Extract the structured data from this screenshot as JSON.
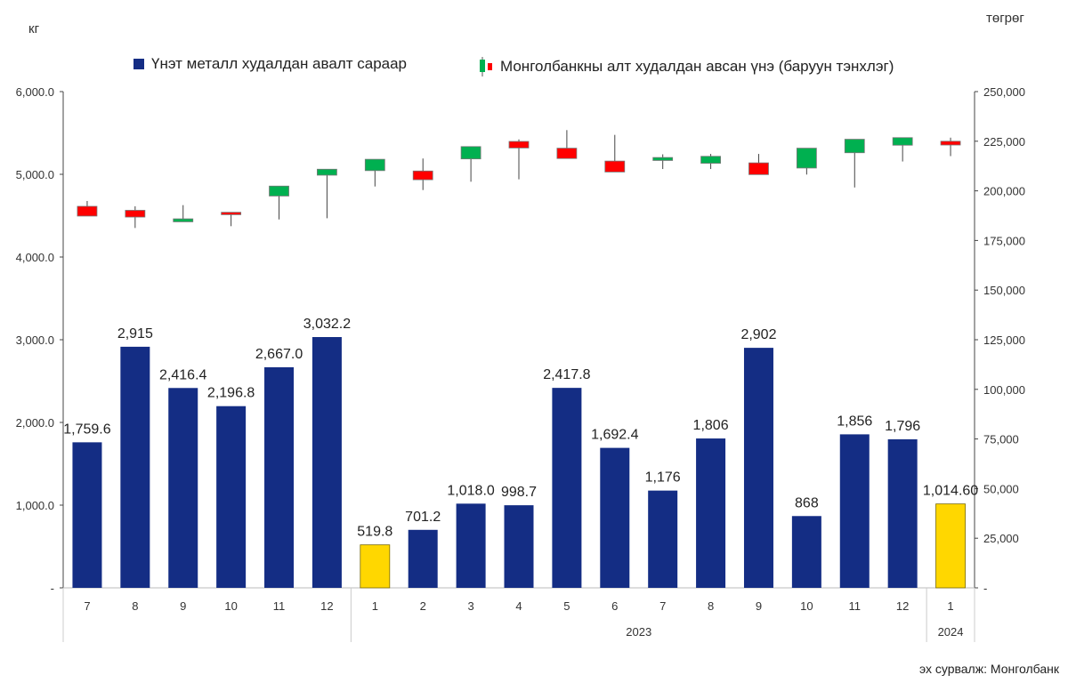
{
  "chart_data": {
    "type": "bar+candlestick",
    "left_unit": "кг",
    "right_unit": "төгрөг",
    "source": "эх сурвалж: Монголбанк",
    "legend": [
      {
        "label": "Үнэт металл худалдан авалт сараар",
        "type": "bar",
        "color": "#142D84"
      },
      {
        "label": "Монголбанкны алт худалдан авсан үнэ (баруун тэнхлэг)",
        "type": "candlestick",
        "up_color": "#00B050",
        "down_color": "#FF0000"
      }
    ],
    "categories": [
      "7",
      "8",
      "9",
      "10",
      "11",
      "12",
      "1",
      "2",
      "3",
      "4",
      "5",
      "6",
      "7",
      "8",
      "9",
      "10",
      "11",
      "12",
      "1"
    ],
    "year_groups": [
      {
        "label": "",
        "start": 0,
        "end": 5
      },
      {
        "label": "2023",
        "start": 6,
        "end": 17
      },
      {
        "label": "2024",
        "start": 18,
        "end": 18
      }
    ],
    "bars": {
      "values": [
        1759.6,
        2915,
        2416.4,
        2196.8,
        2667.0,
        3032.2,
        519.8,
        701.2,
        1018.0,
        998.7,
        2417.8,
        1692.4,
        1176,
        1806,
        2902,
        868,
        1856,
        1796,
        1014.6
      ],
      "labels": [
        "1,759.6",
        "2,915",
        "2,416.4",
        "2,196.8",
        "2,667.0",
        "3,032.2",
        "519.8",
        "701.2",
        "1,018.0",
        "998.7",
        "2,417.8",
        "1,692.4",
        "1,176",
        "1,806",
        "2,902",
        "868",
        "1,856",
        "1,796",
        "1,014.60"
      ],
      "highlight": [
        false,
        false,
        false,
        false,
        false,
        false,
        true,
        false,
        false,
        false,
        false,
        false,
        false,
        false,
        false,
        false,
        false,
        false,
        true
      ],
      "color": "#142D84",
      "highlight_color": "#FFD700"
    },
    "candles": [
      {
        "open": 192200,
        "high": 194900,
        "low": 187300,
        "close": 187300
      },
      {
        "open": 190200,
        "high": 192200,
        "low": 181300,
        "close": 186800
      },
      {
        "open": 184400,
        "high": 192800,
        "low": 184400,
        "close": 185900
      },
      {
        "open": 189200,
        "high": 189200,
        "low": 182200,
        "close": 188000
      },
      {
        "open": 197400,
        "high": 202400,
        "low": 185600,
        "close": 202400
      },
      {
        "open": 207900,
        "high": 210900,
        "low": 186200,
        "close": 210900
      },
      {
        "open": 210200,
        "high": 215900,
        "low": 202200,
        "close": 215900
      },
      {
        "open": 210000,
        "high": 216300,
        "low": 200400,
        "close": 205600
      },
      {
        "open": 216100,
        "high": 222300,
        "low": 204600,
        "close": 222300
      },
      {
        "open": 224900,
        "high": 225900,
        "low": 205800,
        "close": 221600
      },
      {
        "open": 221500,
        "high": 230600,
        "low": 216300,
        "close": 216300
      },
      {
        "open": 215000,
        "high": 228200,
        "low": 209500,
        "close": 209500
      },
      {
        "open": 215300,
        "high": 218400,
        "low": 211000,
        "close": 216800
      },
      {
        "open": 213900,
        "high": 218600,
        "low": 211000,
        "close": 217400
      },
      {
        "open": 214100,
        "high": 218600,
        "low": 208200,
        "close": 208200
      },
      {
        "open": 211500,
        "high": 221500,
        "low": 208200,
        "close": 221500
      },
      {
        "open": 219200,
        "high": 226000,
        "low": 201700,
        "close": 226000
      },
      {
        "open": 223000,
        "high": 226800,
        "low": 214800,
        "close": 226800
      },
      {
        "open": 225000,
        "high": 226800,
        "low": 217500,
        "close": 223100
      }
    ],
    "left_axis": {
      "ylim": [
        0,
        6000
      ],
      "ticks": [
        0,
        1000,
        2000,
        3000,
        4000,
        5000,
        6000
      ],
      "tick_labels": [
        "-",
        "1,000.0",
        "2,000.0",
        "3,000.0",
        "4,000.0",
        "5,000.0",
        "6,000.0"
      ]
    },
    "right_axis": {
      "ylim": [
        0,
        250000
      ],
      "ticks": [
        0,
        25000,
        50000,
        75000,
        100000,
        125000,
        150000,
        175000,
        200000,
        225000,
        250000
      ],
      "tick_labels": [
        "-",
        "25,000",
        "50,000",
        "75,000",
        "100,000",
        "125,000",
        "150,000",
        "175,000",
        "200,000",
        "225,000",
        "250,000"
      ]
    },
    "grid": false
  }
}
